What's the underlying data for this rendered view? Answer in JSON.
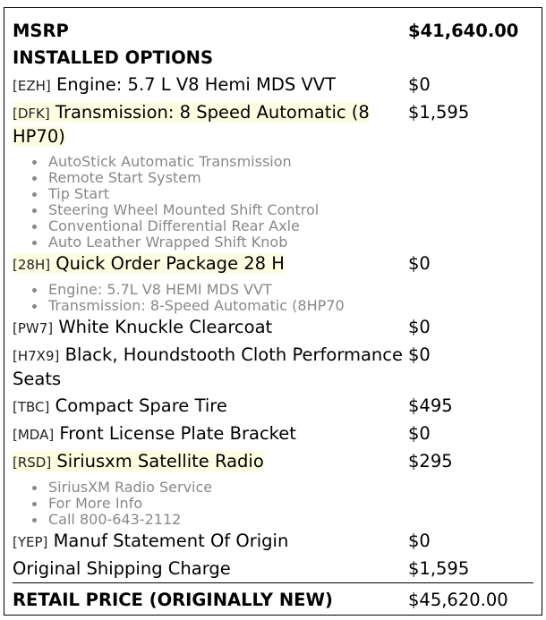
{
  "msrp": {
    "label": "MSRP",
    "value": "$41,640.00"
  },
  "installed_options_label": "INSTALLED OPTIONS",
  "options": [
    {
      "code": "[EZH]",
      "name": "Engine: 5.7 L V8 Hemi MDS VVT",
      "price": "$0",
      "highlight": false,
      "features": []
    },
    {
      "code": "[DFK]",
      "name": "Transmission: 8 Speed Automatic (8 HP70)",
      "price": "$1,595",
      "highlight": true,
      "features": [
        "AutoStick Automatic Transmission",
        "Remote Start System",
        "Tip Start",
        "Steering Wheel Mounted Shift Control",
        "Conventional Differential Rear Axle",
        "Auto Leather Wrapped Shift Knob"
      ]
    },
    {
      "code": "[28H]",
      "name": "Quick Order Package 28 H",
      "price": "$0",
      "highlight": true,
      "features": [
        "Engine: 5.7L V8 HEMI MDS VVT",
        "Transmission: 8-Speed Automatic (8HP70"
      ]
    },
    {
      "code": "[PW7]",
      "name": "White Knuckle Clearcoat",
      "price": "$0",
      "highlight": false,
      "features": []
    },
    {
      "code": "[H7X9]",
      "name": "Black, Houndstooth Cloth Performance Seats",
      "price": "$0",
      "highlight": false,
      "features": []
    },
    {
      "code": "[TBC]",
      "name": "Compact Spare Tire",
      "price": "$495",
      "highlight": false,
      "features": []
    },
    {
      "code": "[MDA]",
      "name": "Front License Plate Bracket",
      "price": "$0",
      "highlight": false,
      "features": []
    },
    {
      "code": "[RSD]",
      "name": "Siriusxm Satellite Radio",
      "price": "$295",
      "highlight": true,
      "features": [
        "SiriusXM Radio Service",
        "For More Info",
        "Call 800-643-2112"
      ]
    },
    {
      "code": "[YEP]",
      "name": "Manuf Statement Of Origin",
      "price": "$0",
      "highlight": false,
      "features": []
    }
  ],
  "shipping": {
    "label": "Original Shipping Charge",
    "value": "$1,595"
  },
  "retail": {
    "label": "RETAIL PRICE (ORIGINALLY NEW)",
    "value": "$45,620.00"
  },
  "colors": {
    "highlight": "#fdfde2",
    "feature_text": "#888888"
  }
}
